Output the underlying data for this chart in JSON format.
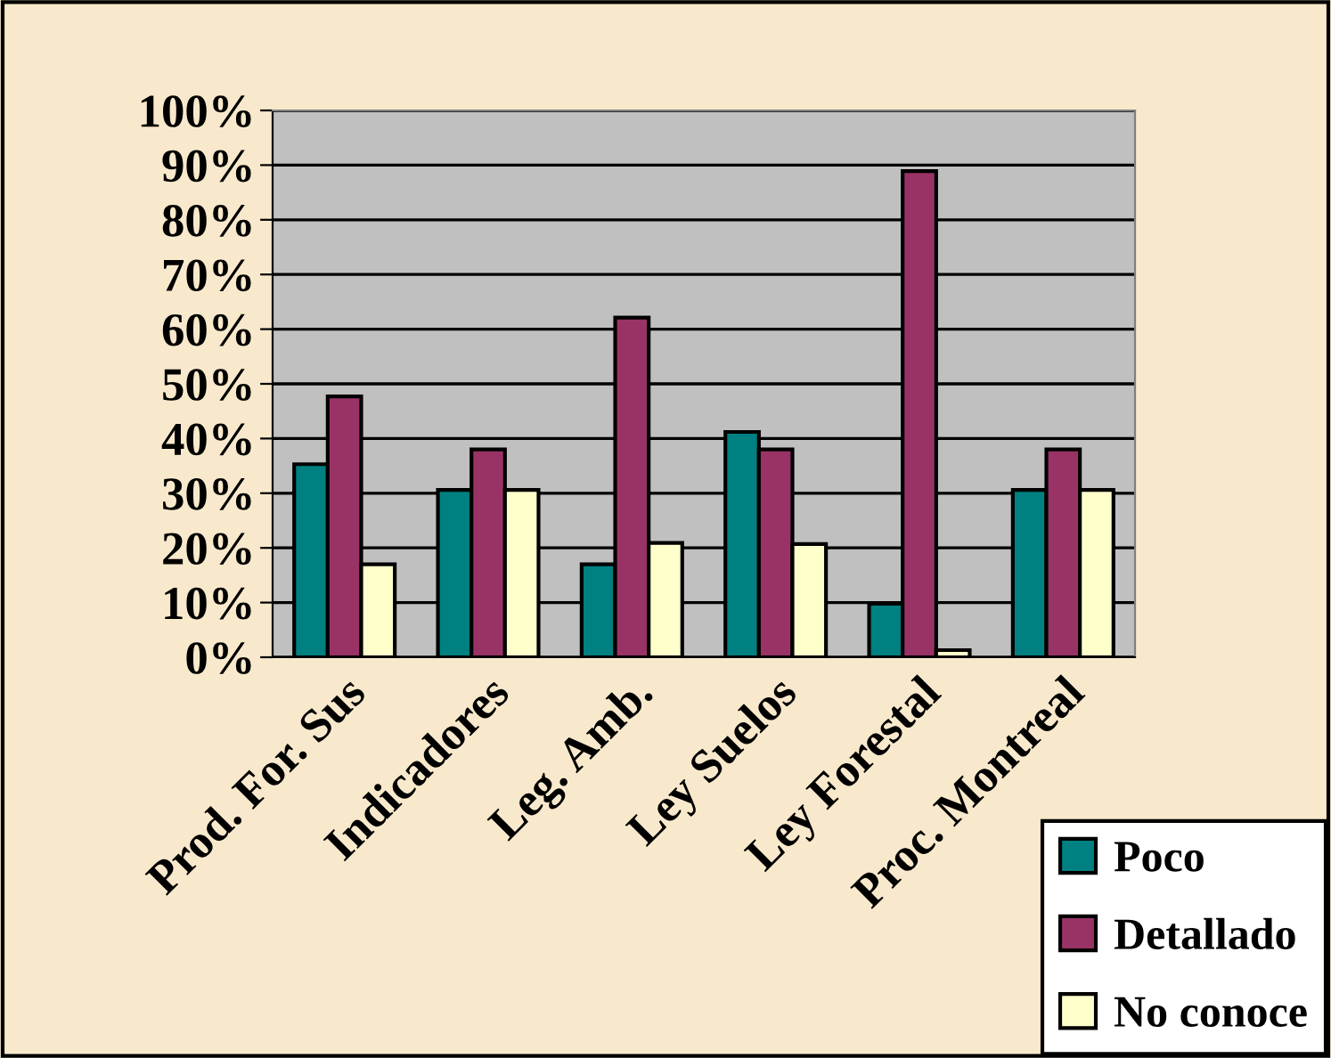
{
  "chart_data": {
    "type": "bar",
    "categories": [
      "Prod. For. Sus",
      "Indicadores",
      "Leg. Amb.",
      "Ley Suelos",
      "Ley Forestal",
      "Proc. Montreal"
    ],
    "series": [
      {
        "name": "Poco",
        "color": "#008080",
        "values": [
          35.3,
          30.6,
          17,
          41.2,
          9.8,
          30.6
        ]
      },
      {
        "name": "Detallado",
        "color": "#993366",
        "values": [
          47.7,
          38,
          62.1,
          38,
          88.9,
          38
        ]
      },
      {
        "name": "No conoce",
        "color": "#ffffcc",
        "values": [
          17,
          30.6,
          20.9,
          20.7,
          1.3,
          30.6
        ]
      }
    ],
    "ylim": [
      0,
      100
    ],
    "yticks": [
      {
        "value": 0,
        "label": "0%"
      },
      {
        "value": 10,
        "label": "10%"
      },
      {
        "value": 20,
        "label": "20%"
      },
      {
        "value": 30,
        "label": "30%"
      },
      {
        "value": 40,
        "label": "40%"
      },
      {
        "value": 50,
        "label": "50%"
      },
      {
        "value": 60,
        "label": "60%"
      },
      {
        "value": 70,
        "label": "70%"
      },
      {
        "value": 80,
        "label": "80%"
      },
      {
        "value": 90,
        "label": "90%"
      },
      {
        "value": 100,
        "label": "100%"
      }
    ],
    "grid": "y",
    "legend": "bottom right"
  }
}
